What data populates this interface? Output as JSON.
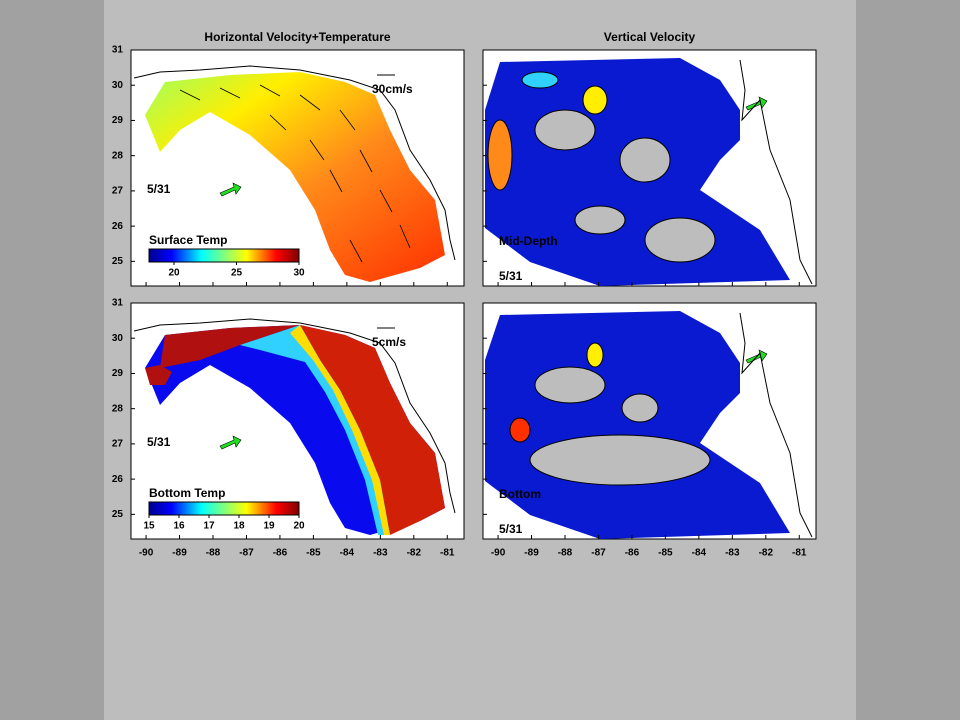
{
  "figure": {
    "panels": [
      {
        "title": "Horizontal Velocity+Temperature",
        "scale_label": "30cm/s",
        "date": "5/31",
        "colorbar": {
          "label": "Surface Temp",
          "ticks": [
            20,
            25,
            30
          ],
          "range": [
            18,
            30
          ]
        }
      },
      {
        "title": "Vertical Velocity",
        "layer": "Mid-Depth",
        "date": "5/31"
      },
      {
        "scale_label": "5cm/s",
        "date": "5/31",
        "colorbar": {
          "label": "Bottom Temp",
          "ticks": [
            15,
            16,
            17,
            18,
            19,
            20
          ],
          "range": [
            15,
            20
          ]
        }
      },
      {
        "layer": "Bottom",
        "date": "5/31"
      }
    ],
    "xlim": [
      -90.45,
      -80.5
    ],
    "xticks": [
      -90,
      -89,
      -88,
      -87,
      -86,
      -85,
      -84,
      -83,
      -82,
      -81
    ],
    "ylim": [
      24.3,
      31
    ],
    "yticks": [
      25,
      26,
      27,
      28,
      29,
      30,
      31
    ]
  }
}
